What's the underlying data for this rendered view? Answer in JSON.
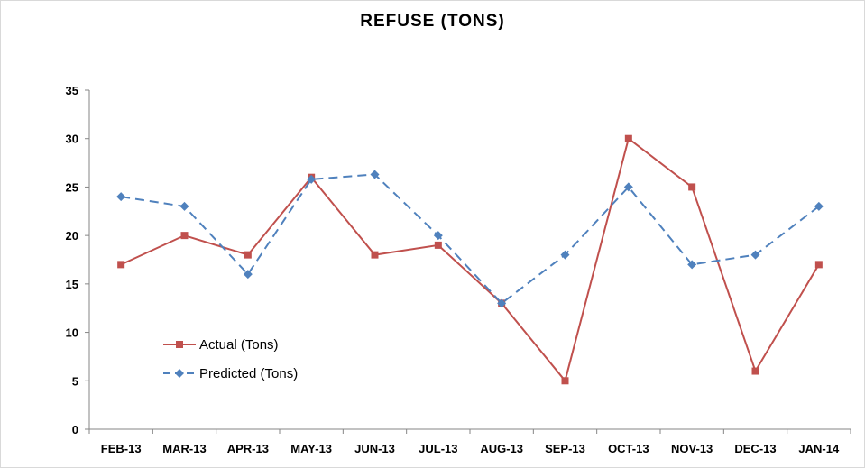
{
  "chart_data": {
    "type": "line",
    "title": "REFUSE (TONS)",
    "xlabel": "",
    "ylabel": "",
    "categories": [
      "FEB-13",
      "MAR-13",
      "APR-13",
      "MAY-13",
      "JUN-13",
      "JUL-13",
      "AUG-13",
      "SEP-13",
      "OCT-13",
      "NOV-13",
      "DEC-13",
      "JAN-14"
    ],
    "ylim": [
      0,
      35
    ],
    "yticks": [
      0,
      5,
      10,
      15,
      20,
      25,
      30,
      35
    ],
    "grid": false,
    "legend_position": "left-inside",
    "series": [
      {
        "name": "Actual (Tons)",
        "color": "#c0504d",
        "line_style": "solid",
        "marker": "square",
        "values": [
          17,
          20,
          18,
          26,
          18,
          19,
          13,
          5,
          30,
          25,
          6,
          17
        ]
      },
      {
        "name": "Predicted (Tons)",
        "color": "#4f81bd",
        "line_style": "dashed",
        "marker": "diamond",
        "values": [
          24,
          23,
          16,
          25.8,
          26.3,
          20,
          13,
          18,
          25,
          17,
          18,
          23
        ]
      }
    ]
  }
}
